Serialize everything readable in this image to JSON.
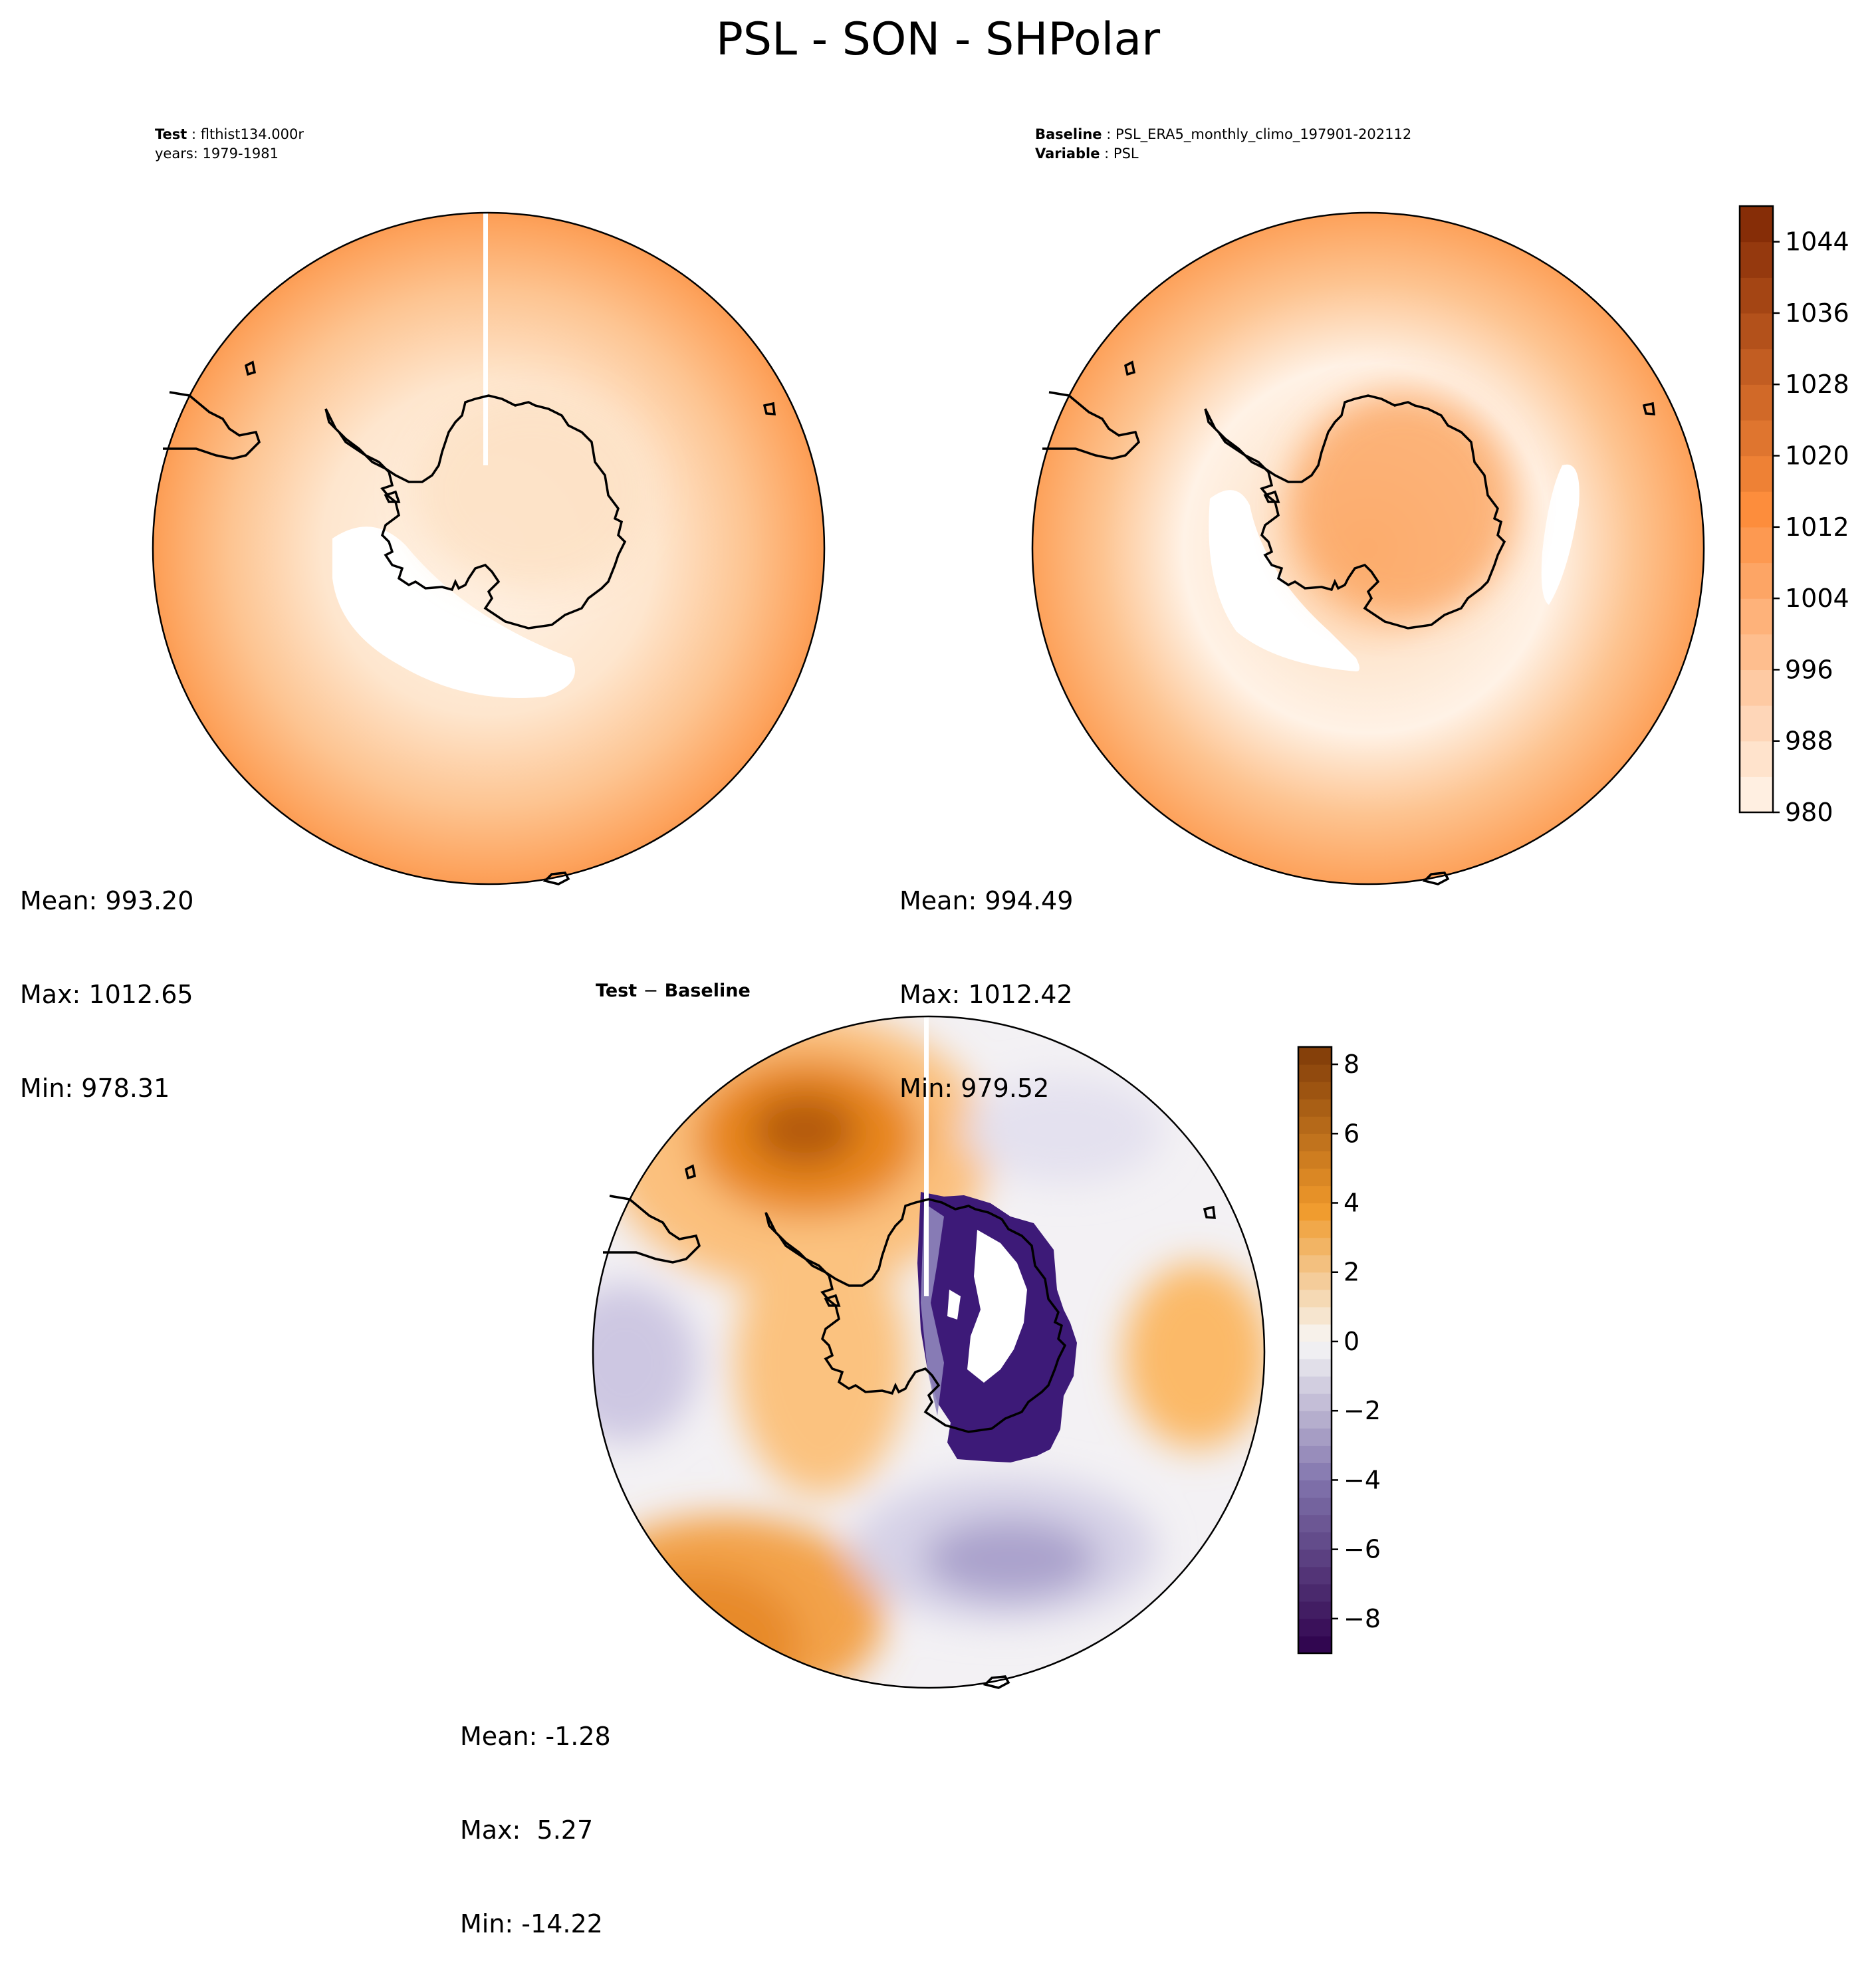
{
  "figure": {
    "title": "PSL - SON - SHPolar"
  },
  "panels": {
    "test": {
      "label_key": "Test",
      "label_value": "flthist134.000r",
      "line2": "years: 1979-1981",
      "stats": {
        "mean": "Mean: 993.20",
        "max": "Max: 1012.65",
        "min": "Min: 978.31"
      }
    },
    "baseline": {
      "label_key": "Baseline",
      "label_value": "PSL_ERA5_monthly_climo_197901-202112",
      "var_key": "Variable",
      "var_value": "PSL",
      "stats": {
        "mean": "Mean: 994.49",
        "max": "Max: 1012.42",
        "min": "Min: 979.52"
      }
    },
    "diff": {
      "title_a": "Test",
      "title_op": "−",
      "title_b": "Baseline",
      "stats": {
        "mean": "Mean: -1.28",
        "max": "Max:  5.27",
        "min": "Min: -14.22"
      }
    }
  },
  "chart_data": [
    {
      "type": "heatmap",
      "name": "test",
      "projection": "south polar stereographic",
      "stats": {
        "mean": 993.2,
        "max": 1012.65,
        "min": 978.31
      },
      "colormap": "Oranges",
      "range": [
        980,
        1048
      ]
    },
    {
      "type": "heatmap",
      "name": "baseline",
      "projection": "south polar stereographic",
      "stats": {
        "mean": 994.49,
        "max": 1012.42,
        "min": 979.52
      },
      "colormap": "Oranges",
      "range": [
        980,
        1048
      ]
    },
    {
      "type": "heatmap",
      "name": "difference",
      "projection": "south polar stereographic",
      "stats": {
        "mean": -1.28,
        "max": 5.27,
        "min": -14.22
      },
      "colormap": "PuOr_r",
      "range": [
        -9,
        8.5
      ]
    }
  ],
  "colorbars": {
    "main": {
      "ticks": [
        "1044",
        "1036",
        "1028",
        "1020",
        "1012",
        "1004",
        "996",
        "988",
        "980"
      ],
      "tick_values": [
        1044,
        1036,
        1028,
        1020,
        1012,
        1004,
        996,
        988,
        980
      ],
      "range": [
        980,
        1048
      ],
      "levels": 17,
      "color_low": "#fff5eb",
      "color_mid": "#fd8d3c",
      "color_high": "#7f2704"
    },
    "diff": {
      "ticks": [
        "8",
        "6",
        "4",
        "2",
        "0",
        "−2",
        "−4",
        "−6",
        "−8"
      ],
      "tick_values": [
        8,
        6,
        4,
        2,
        0,
        -2,
        -4,
        -6,
        -8
      ],
      "range": [
        -9,
        8.5
      ],
      "levels": 35,
      "color_neg_end": "#2d004b",
      "color_neg_mid": "#8073ac",
      "color_zero": "#f7f7f7",
      "color_pos_mid": "#f09a2b",
      "color_pos_end": "#7f3b08"
    }
  }
}
